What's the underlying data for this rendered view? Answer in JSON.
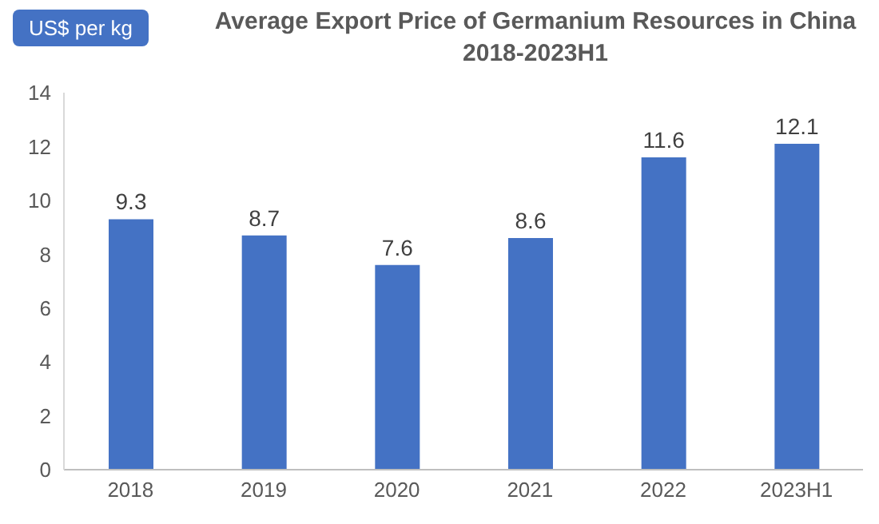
{
  "chart_data": {
    "type": "bar",
    "title": "Average Export Price of Germanium Resources in China 2018-2023H1",
    "ylabel": "US$ per kg",
    "categories": [
      "2018",
      "2019",
      "2020",
      "2021",
      "2022",
      "2023H1"
    ],
    "values": [
      9.3,
      8.7,
      7.6,
      8.6,
      11.6,
      12.1
    ],
    "color": "#4472c4",
    "ylim": [
      0,
      14
    ],
    "yticks": [
      0,
      2,
      4,
      6,
      8,
      10,
      12,
      14
    ],
    "grid": false,
    "data_labels": true
  }
}
